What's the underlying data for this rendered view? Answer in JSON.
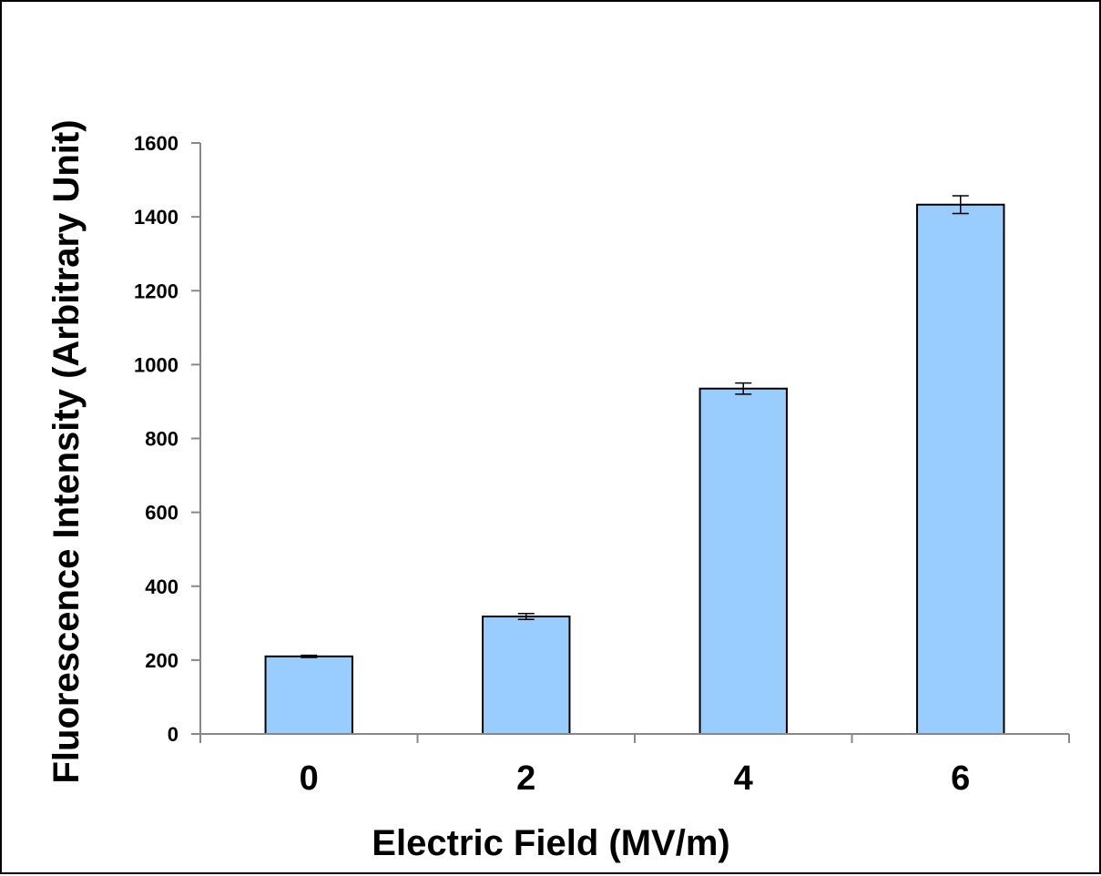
{
  "chart_data": {
    "type": "bar",
    "title": "",
    "xlabel": "Electric Field (MV/m)",
    "ylabel": "Fluorescence Intensity (Arbitrary Unit)",
    "categories": [
      "0",
      "2",
      "4",
      "6"
    ],
    "values": [
      210,
      318,
      935,
      1433
    ],
    "errors": [
      3,
      8,
      15,
      24
    ],
    "ylim": [
      0,
      1600
    ],
    "yticks": [
      0,
      200,
      400,
      600,
      800,
      1000,
      1200,
      1400,
      1600
    ],
    "grid": false,
    "legend": "none",
    "bar_color": "#99ccff",
    "bar_edge_color": "#000000"
  }
}
